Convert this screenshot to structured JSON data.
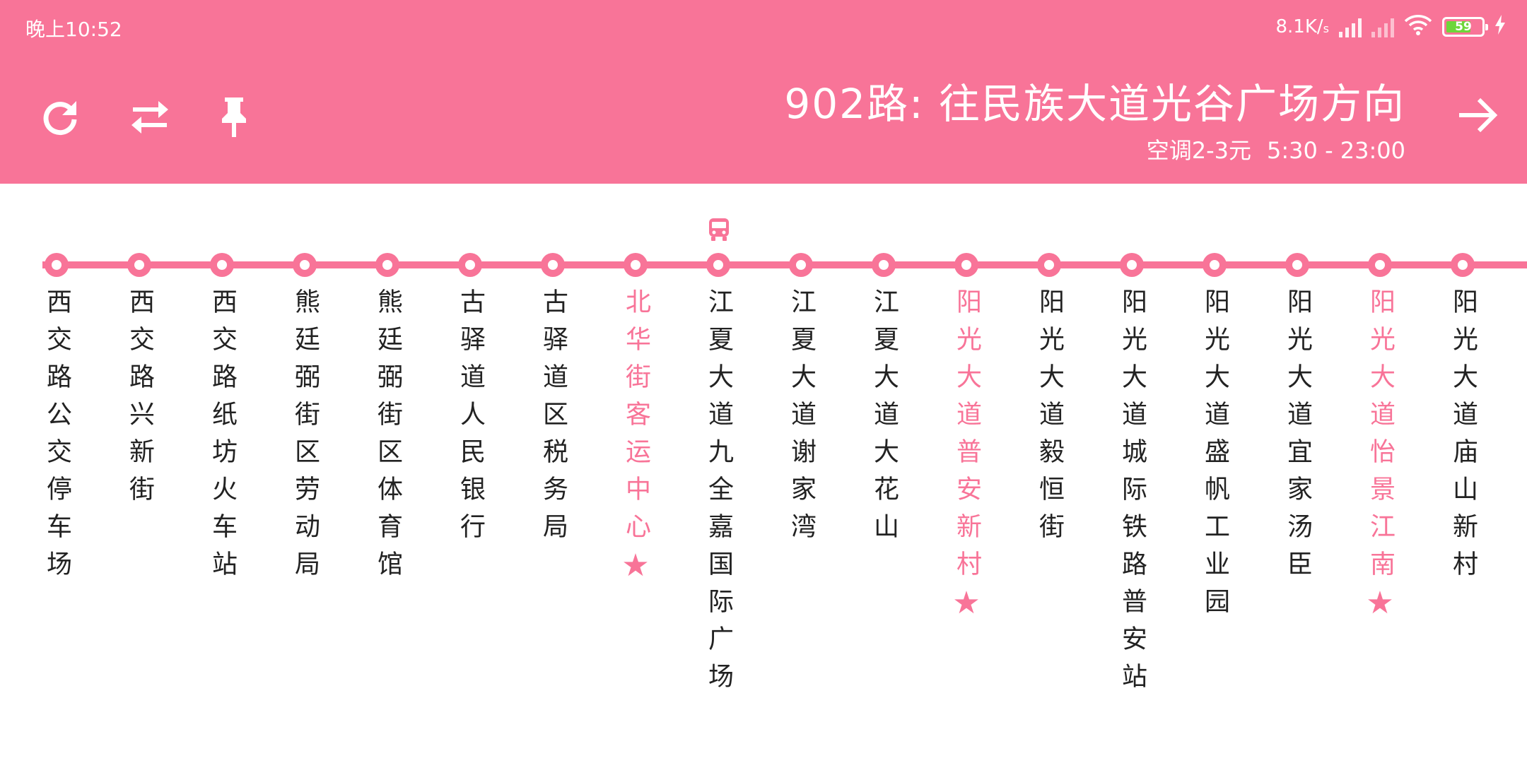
{
  "status_bar": {
    "time": "晚上10:52",
    "net_speed": "8.1K/",
    "net_speed_unit": "s",
    "battery_level": "59"
  },
  "header": {
    "route_title": "902路: 往民族大道光谷广场方向",
    "fare": "空调2-3元",
    "hours": "5:30 - 23:00"
  },
  "toolbar": {
    "icons": [
      "refresh-icon",
      "swap-direction-icon",
      "pin-icon",
      "arrow-right-icon"
    ]
  },
  "colors": {
    "accent": "#f87498",
    "header_bg": "#f87498",
    "text": "#222222"
  },
  "stops": [
    {
      "name": "西交路公交停车场",
      "highlight": false,
      "star": false
    },
    {
      "name": "西交路兴新街",
      "highlight": false,
      "star": false
    },
    {
      "name": "西交路纸坊火车站",
      "highlight": false,
      "star": false
    },
    {
      "name": "熊廷弼街区劳动局",
      "highlight": false,
      "star": false
    },
    {
      "name": "熊廷弼街区体育馆",
      "highlight": false,
      "star": false
    },
    {
      "name": "古驿道人民银行",
      "highlight": false,
      "star": false
    },
    {
      "name": "古驿道区税务局",
      "highlight": false,
      "star": false
    },
    {
      "name": "北华街客运中心",
      "highlight": true,
      "star": true
    },
    {
      "name": "江夏大道九全嘉国际广场",
      "highlight": false,
      "star": false,
      "bus_here": true
    },
    {
      "name": "江夏大道谢家湾",
      "highlight": false,
      "star": false
    },
    {
      "name": "江夏大道大花山",
      "highlight": false,
      "star": false
    },
    {
      "name": "阳光大道普安新村",
      "highlight": true,
      "star": true
    },
    {
      "name": "阳光大道毅恒街",
      "highlight": false,
      "star": false
    },
    {
      "name": "阳光大道城际铁路普安站",
      "highlight": false,
      "star": false
    },
    {
      "name": "阳光大道盛帆工业园",
      "highlight": false,
      "star": false
    },
    {
      "name": "阳光大道宜家汤臣",
      "highlight": false,
      "star": false
    },
    {
      "name": "阳光大道怡景江南",
      "highlight": true,
      "star": true
    },
    {
      "name": "阳光大道庙山新村",
      "highlight": false,
      "star": false
    }
  ],
  "star_glyph": "★"
}
